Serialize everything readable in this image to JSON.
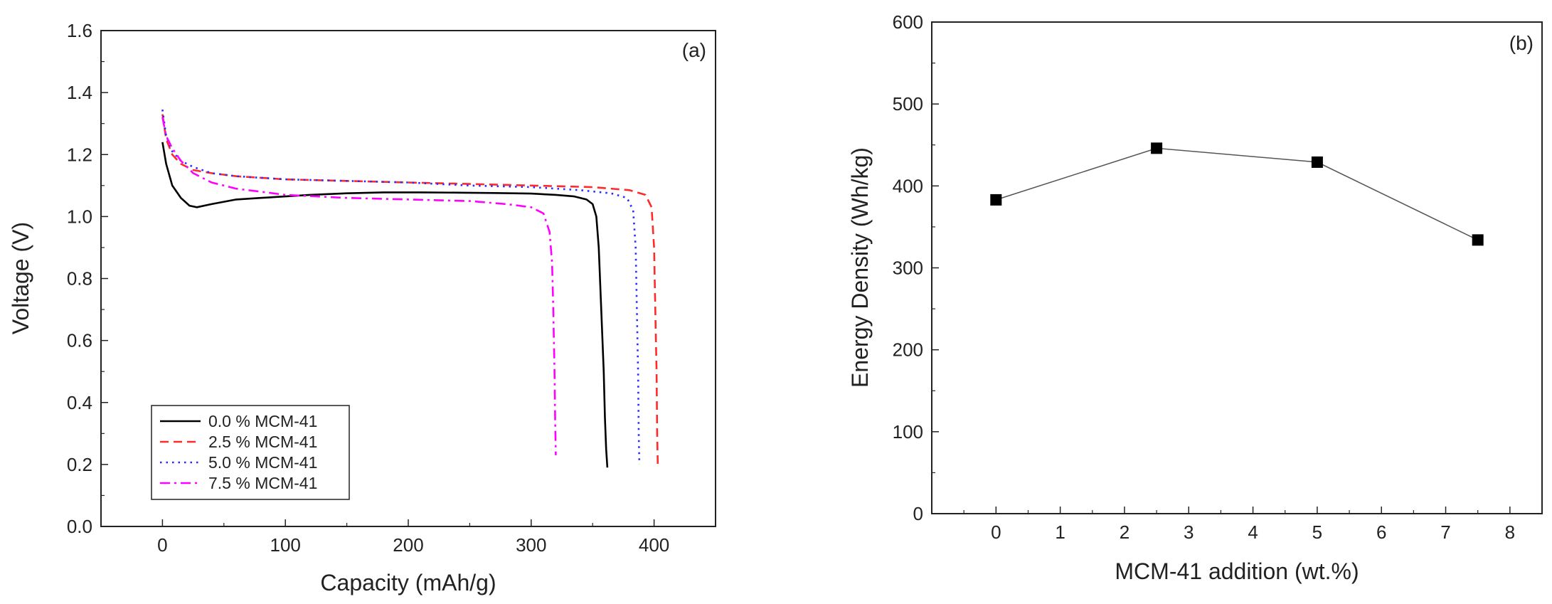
{
  "chart_data": [
    {
      "type": "line",
      "panel_label": "(a)",
      "xlabel": "Capacity (mAh/g)",
      "ylabel": "Voltage (V)",
      "xlim": [
        -50,
        450
      ],
      "ylim": [
        0.0,
        1.6
      ],
      "x_ticks": [
        0,
        100,
        200,
        300,
        400
      ],
      "x_tick_labels": [
        "0",
        "100",
        "200",
        "300",
        "400"
      ],
      "y_ticks": [
        0.0,
        0.2,
        0.4,
        0.6,
        0.8,
        1.0,
        1.2,
        1.4,
        1.6
      ],
      "y_tick_labels": [
        "0.0",
        "0.2",
        "0.4",
        "0.6",
        "0.8",
        "1.0",
        "1.2",
        "1.4",
        "1.6"
      ],
      "legend_position": "bottom-left",
      "series": [
        {
          "name": "0.0 % MCM-41",
          "color": "#000000",
          "dash": "solid",
          "x": [
            0,
            3,
            8,
            15,
            22,
            28,
            40,
            60,
            80,
            100,
            120,
            150,
            180,
            210,
            240,
            270,
            300,
            320,
            335,
            345,
            350,
            353,
            355,
            357,
            359,
            360,
            361,
            362
          ],
          "y": [
            1.24,
            1.17,
            1.1,
            1.06,
            1.035,
            1.03,
            1.04,
            1.055,
            1.06,
            1.065,
            1.07,
            1.075,
            1.078,
            1.078,
            1.077,
            1.076,
            1.074,
            1.07,
            1.065,
            1.055,
            1.04,
            1.0,
            0.9,
            0.7,
            0.5,
            0.35,
            0.25,
            0.19
          ]
        },
        {
          "name": "2.5 % MCM-41",
          "color": "#ff2a2a",
          "dash": "dashed",
          "x": [
            0,
            3,
            8,
            15,
            25,
            40,
            60,
            100,
            150,
            200,
            250,
            300,
            350,
            380,
            393,
            398,
            400,
            401,
            402,
            402.5,
            403
          ],
          "y": [
            1.33,
            1.25,
            1.2,
            1.17,
            1.15,
            1.14,
            1.13,
            1.12,
            1.115,
            1.11,
            1.105,
            1.1,
            1.095,
            1.085,
            1.07,
            1.03,
            0.9,
            0.7,
            0.5,
            0.3,
            0.2
          ]
        },
        {
          "name": "5.0 % MCM-41",
          "color": "#2b2bff",
          "dash": "dotted",
          "x": [
            0,
            3,
            8,
            15,
            25,
            40,
            60,
            100,
            150,
            200,
            250,
            300,
            340,
            365,
            378,
            383,
            385,
            386,
            387,
            387.5,
            388
          ],
          "y": [
            1.345,
            1.26,
            1.21,
            1.18,
            1.16,
            1.14,
            1.13,
            1.12,
            1.115,
            1.11,
            1.1,
            1.095,
            1.085,
            1.075,
            1.06,
            1.02,
            0.9,
            0.7,
            0.5,
            0.3,
            0.2
          ]
        },
        {
          "name": "7.5 % MCM-41",
          "color": "#ff00ff",
          "dash": "dash-dot",
          "x": [
            0,
            3,
            8,
            15,
            25,
            40,
            60,
            80,
            100,
            150,
            200,
            250,
            280,
            300,
            310,
            315,
            317,
            318,
            319,
            319.5,
            320
          ],
          "y": [
            1.32,
            1.26,
            1.22,
            1.18,
            1.14,
            1.11,
            1.09,
            1.08,
            1.07,
            1.06,
            1.055,
            1.05,
            1.04,
            1.03,
            1.01,
            0.95,
            0.85,
            0.7,
            0.5,
            0.35,
            0.23
          ]
        }
      ]
    },
    {
      "type": "line",
      "panel_label": "(b)",
      "xlabel": "MCM-41 addition (wt.%)",
      "ylabel": "Energy Density (Wh/kg)",
      "xlim": [
        -1,
        8.5
      ],
      "ylim": [
        0,
        600
      ],
      "x_ticks": [
        0,
        1,
        2,
        3,
        4,
        5,
        6,
        7,
        8
      ],
      "x_tick_labels": [
        "0",
        "1",
        "2",
        "3",
        "4",
        "5",
        "6",
        "7",
        "8"
      ],
      "y_ticks": [
        0,
        100,
        200,
        300,
        400,
        500,
        600
      ],
      "y_tick_labels": [
        "0",
        "100",
        "200",
        "300",
        "400",
        "500",
        "600"
      ],
      "series": [
        {
          "name": "Energy density",
          "color": "#000000",
          "x": [
            0,
            2.5,
            5,
            7.5
          ],
          "y": [
            383,
            446,
            429,
            334
          ]
        }
      ]
    }
  ]
}
